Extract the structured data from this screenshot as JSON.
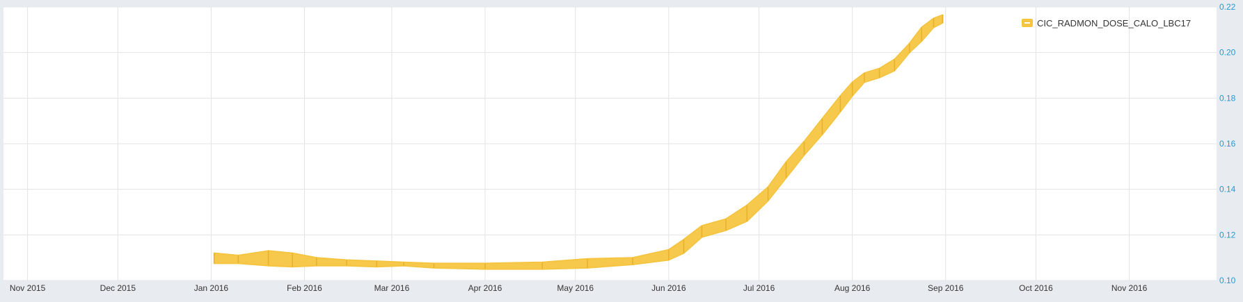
{
  "chart_data": {
    "type": "line",
    "title": "",
    "xlabel": "",
    "ylabel": "",
    "x_ticks": [
      "Nov 2015",
      "Dec 2015",
      "Jan 2016",
      "Feb 2016",
      "Mar 2016",
      "Apr 2016",
      "May 2016",
      "Jun 2016",
      "Jul 2016",
      "Aug 2016",
      "Sep 2016",
      "Oct 2016",
      "Nov 2016"
    ],
    "x_tick_dates": [
      "2015-11-01",
      "2015-12-01",
      "2016-01-01",
      "2016-02-01",
      "2016-03-01",
      "2016-04-01",
      "2016-05-01",
      "2016-06-01",
      "2016-07-01",
      "2016-08-01",
      "2016-09-01",
      "2016-10-01",
      "2016-11-01"
    ],
    "xlim": [
      "2015-10-24",
      "2016-11-30"
    ],
    "ylim": [
      0.1,
      0.22
    ],
    "y_ticks": [
      "0.10",
      "0.12",
      "0.14",
      "0.16",
      "0.18",
      "0.20",
      "0.22"
    ],
    "y_tick_values": [
      0.1,
      0.12,
      0.14,
      0.16,
      0.18,
      0.2,
      0.22
    ],
    "y_axis_side": "right",
    "grid": true,
    "legend_position": "top-right",
    "series": [
      {
        "name": "CIC_RADMON_DOSE_CALO_LBC17",
        "color": "#f5c542",
        "band": [
          {
            "x": "2016-01-02",
            "low": 0.1075,
            "high": 0.112
          },
          {
            "x": "2016-01-10",
            "low": 0.1075,
            "high": 0.111
          },
          {
            "x": "2016-01-20",
            "low": 0.1065,
            "high": 0.113
          },
          {
            "x": "2016-01-28",
            "low": 0.106,
            "high": 0.112
          },
          {
            "x": "2016-02-05",
            "low": 0.1065,
            "high": 0.11
          },
          {
            "x": "2016-02-15",
            "low": 0.1065,
            "high": 0.109
          },
          {
            "x": "2016-02-25",
            "low": 0.106,
            "high": 0.1085
          },
          {
            "x": "2016-03-05",
            "low": 0.1065,
            "high": 0.108
          },
          {
            "x": "2016-03-15",
            "low": 0.1055,
            "high": 0.1075
          },
          {
            "x": "2016-04-01",
            "low": 0.105,
            "high": 0.1075
          },
          {
            "x": "2016-04-20",
            "low": 0.105,
            "high": 0.108
          },
          {
            "x": "2016-05-05",
            "low": 0.1055,
            "high": 0.1095
          },
          {
            "x": "2016-05-20",
            "low": 0.107,
            "high": 0.11
          },
          {
            "x": "2016-06-01",
            "low": 0.109,
            "high": 0.1135
          },
          {
            "x": "2016-06-06",
            "low": 0.112,
            "high": 0.118
          },
          {
            "x": "2016-06-12",
            "low": 0.119,
            "high": 0.124
          },
          {
            "x": "2016-06-20",
            "low": 0.122,
            "high": 0.127
          },
          {
            "x": "2016-06-27",
            "low": 0.126,
            "high": 0.133
          },
          {
            "x": "2016-07-04",
            "low": 0.135,
            "high": 0.141
          },
          {
            "x": "2016-07-10",
            "low": 0.145,
            "high": 0.152
          },
          {
            "x": "2016-07-16",
            "low": 0.155,
            "high": 0.161
          },
          {
            "x": "2016-07-22",
            "low": 0.164,
            "high": 0.171
          },
          {
            "x": "2016-07-28",
            "low": 0.174,
            "high": 0.181
          },
          {
            "x": "2016-08-01",
            "low": 0.181,
            "high": 0.187
          },
          {
            "x": "2016-08-05",
            "low": 0.187,
            "high": 0.191
          },
          {
            "x": "2016-08-10",
            "low": 0.189,
            "high": 0.193
          },
          {
            "x": "2016-08-15",
            "low": 0.192,
            "high": 0.197
          },
          {
            "x": "2016-08-20",
            "low": 0.2,
            "high": 0.204
          },
          {
            "x": "2016-08-24",
            "low": 0.205,
            "high": 0.211
          },
          {
            "x": "2016-08-28",
            "low": 0.211,
            "high": 0.215
          },
          {
            "x": "2016-08-31",
            "low": 0.213,
            "high": 0.2165
          }
        ]
      }
    ]
  }
}
